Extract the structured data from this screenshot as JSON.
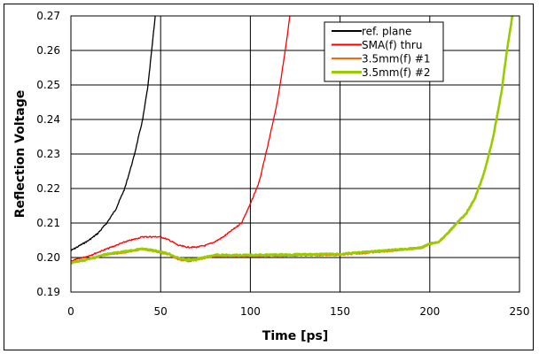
{
  "chart_data": {
    "type": "line",
    "title": "",
    "xlabel": "Time [ps]",
    "ylabel": "Reflection Voltage",
    "xlim": [
      0,
      250
    ],
    "ylim": [
      0.19,
      0.27
    ],
    "xticks": [
      0,
      50,
      100,
      150,
      200,
      250
    ],
    "yticks": [
      "0.19",
      "0.20",
      "0.21",
      "0.22",
      "0.23",
      "0.24",
      "0.25",
      "0.26",
      "0.27"
    ],
    "grid": true,
    "legend_position": "top-right",
    "series": [
      {
        "name": "ref. plane",
        "color": "#000000",
        "x": [
          0,
          5,
          10,
          15,
          20,
          25,
          30,
          35,
          40,
          43,
          45,
          47
        ],
        "y": [
          0.202,
          0.2035,
          0.205,
          0.207,
          0.21,
          0.214,
          0.22,
          0.229,
          0.24,
          0.25,
          0.26,
          0.27
        ]
      },
      {
        "name": "SMA(f) thru",
        "color": "#ff0000",
        "x": [
          0,
          10,
          20,
          30,
          40,
          50,
          55,
          60,
          65,
          70,
          75,
          80,
          85,
          90,
          95,
          100,
          105,
          110,
          115,
          118,
          120,
          122
        ],
        "y": [
          0.199,
          0.2005,
          0.2025,
          0.2045,
          0.206,
          0.206,
          0.205,
          0.2035,
          0.203,
          0.203,
          0.2035,
          0.2045,
          0.206,
          0.208,
          0.21,
          0.2155,
          0.222,
          0.233,
          0.245,
          0.255,
          0.262,
          0.27
        ]
      },
      {
        "name": "3.5mm(f) #1",
        "color": "#ff6600",
        "x": [
          0,
          10,
          20,
          30,
          40,
          50,
          55,
          60,
          65,
          70,
          80,
          100,
          150,
          175,
          195,
          200,
          205,
          210,
          215,
          220,
          225,
          230,
          235,
          240,
          243,
          246
        ],
        "y": [
          0.1985,
          0.1995,
          0.201,
          0.2015,
          0.2025,
          0.2015,
          0.2008,
          0.1995,
          0.199,
          0.1993,
          0.2005,
          0.2005,
          0.2008,
          0.2018,
          0.2028,
          0.204,
          0.2045,
          0.207,
          0.21,
          0.2125,
          0.217,
          0.224,
          0.234,
          0.248,
          0.26,
          0.27
        ]
      },
      {
        "name": "3.5mm(f) #2",
        "color": "#99cc00",
        "x": [
          0,
          10,
          20,
          30,
          40,
          50,
          55,
          60,
          65,
          70,
          80,
          100,
          150,
          175,
          195,
          200,
          205,
          210,
          215,
          220,
          225,
          230,
          235,
          240,
          243,
          246
        ],
        "y": [
          0.1985,
          0.1995,
          0.201,
          0.2017,
          0.2025,
          0.2017,
          0.201,
          0.1998,
          0.1993,
          0.1995,
          0.2007,
          0.2007,
          0.201,
          0.202,
          0.2028,
          0.204,
          0.2045,
          0.207,
          0.21,
          0.2125,
          0.217,
          0.224,
          0.234,
          0.248,
          0.26,
          0.27
        ]
      }
    ]
  }
}
